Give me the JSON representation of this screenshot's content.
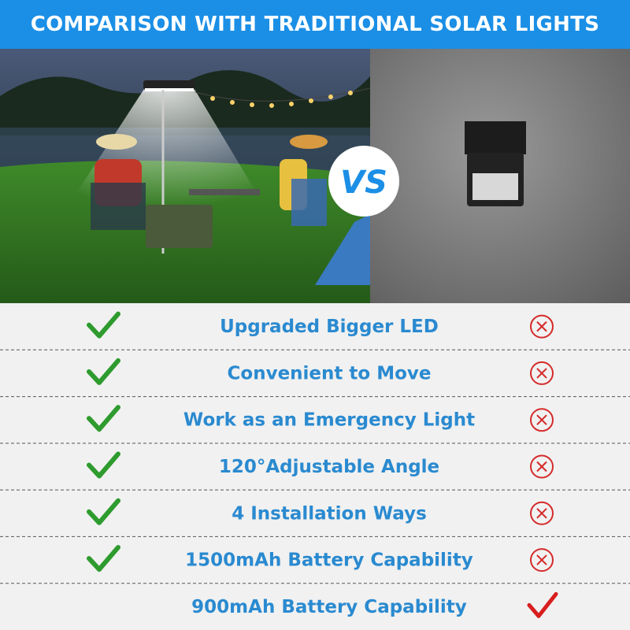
{
  "header": {
    "title": "COMPARISON WITH TRADITIONAL SOLAR LIGHTS"
  },
  "vs_label": "VS",
  "rows": [
    {
      "feature": "Upgraded Bigger LED",
      "ours": true,
      "traditional": false
    },
    {
      "feature": "Convenient to Move",
      "ours": true,
      "traditional": false
    },
    {
      "feature": "Work as an Emergency Light",
      "ours": true,
      "traditional": false
    },
    {
      "feature": "120°Adjustable Angle",
      "ours": true,
      "traditional": false
    },
    {
      "feature": "4 Installation Ways",
      "ours": true,
      "traditional": false
    },
    {
      "feature": "1500mAh Battery Capability",
      "ours": true,
      "traditional": false
    },
    {
      "feature": "900mAh Battery Capability",
      "ours": false,
      "traditional": true
    }
  ]
}
